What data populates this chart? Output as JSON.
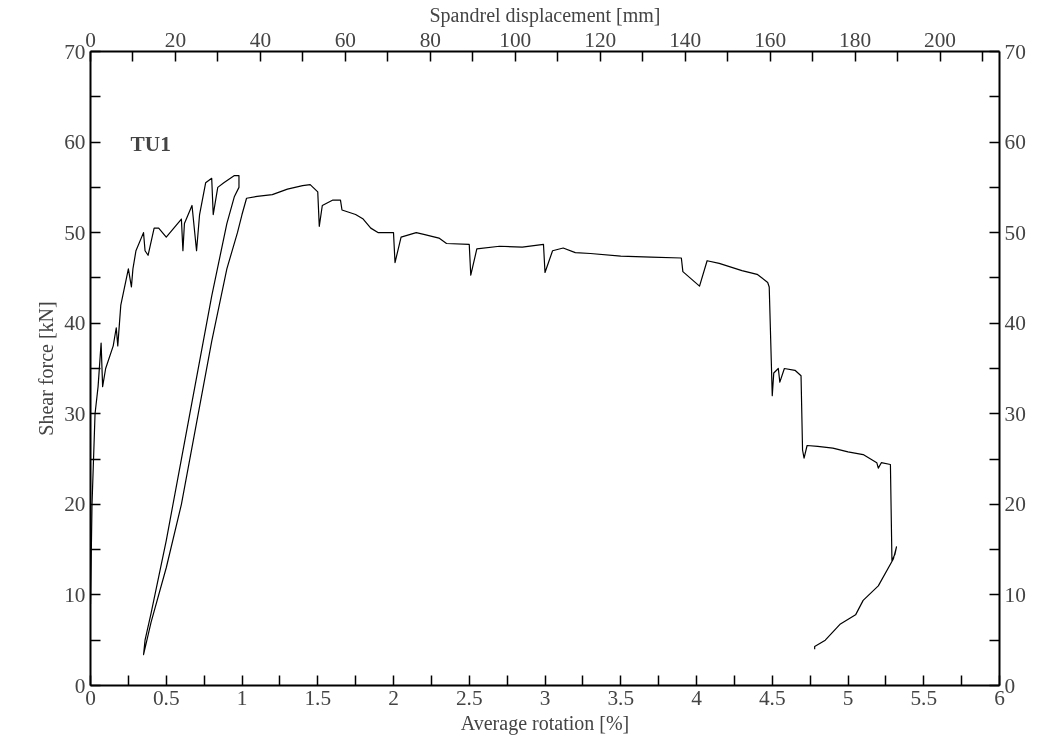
{
  "chart_data": {
    "type": "line",
    "xlabel": "Average rotation [%]",
    "ylabel": "Shear force [kN]",
    "x2label": "Spandrel displacement [mm]",
    "annotations": [
      "TU1"
    ],
    "xlim": [
      0,
      6
    ],
    "ylim": [
      0,
      70
    ],
    "x2lim": [
      0,
      214
    ],
    "y2lim": [
      0,
      70
    ],
    "xticks": [
      0,
      {
        "value": 0.25,
        "label": null
      },
      0.5,
      {
        "value": 0.75,
        "label": null
      },
      1,
      {
        "value": 1.25,
        "label": null
      },
      1.5,
      {
        "value": 1.75,
        "label": null
      },
      2,
      {
        "value": 2.25,
        "label": null
      },
      2.5,
      {
        "value": 2.75,
        "label": null
      },
      3,
      {
        "value": 3.25,
        "label": null
      },
      3.5,
      {
        "value": 3.75,
        "label": null
      },
      4,
      {
        "value": 4.25,
        "label": null
      },
      4.5,
      {
        "value": 4.75,
        "label": null
      },
      5,
      {
        "value": 5.25,
        "label": null
      },
      5.5,
      {
        "value": 5.75,
        "label": null
      },
      6
    ],
    "x2ticks": [
      0,
      {
        "value": 10,
        "label": null
      },
      20,
      {
        "value": 30,
        "label": null
      },
      40,
      {
        "value": 50,
        "label": null
      },
      60,
      {
        "value": 70,
        "label": null
      },
      80,
      {
        "value": 90,
        "label": null
      },
      100,
      {
        "value": 110,
        "label": null
      },
      120,
      {
        "value": 130,
        "label": null
      },
      140,
      {
        "value": 150,
        "label": null
      },
      160,
      {
        "value": 170,
        "label": null
      },
      180,
      {
        "value": 190,
        "label": null
      },
      200,
      {
        "value": 210,
        "label": null
      }
    ],
    "yticks": [
      0,
      {
        "value": 5,
        "label": null
      },
      10,
      {
        "value": 15,
        "label": null
      },
      20,
      {
        "value": 25,
        "label": null
      },
      30,
      {
        "value": 35,
        "label": null
      },
      40,
      {
        "value": 45,
        "label": null
      },
      50,
      {
        "value": 55,
        "label": null
      },
      60,
      {
        "value": 65,
        "label": null
      },
      70
    ],
    "y2ticks": [
      0,
      {
        "value": 5,
        "label": null
      },
      10,
      {
        "value": 15,
        "label": null
      },
      20,
      {
        "value": 25,
        "label": null
      },
      30,
      {
        "value": 35,
        "label": null
      },
      40,
      {
        "value": 45,
        "label": null
      },
      50,
      {
        "value": 55,
        "label": null
      },
      60,
      {
        "value": 65,
        "label": null
      },
      70
    ],
    "grid": false,
    "series": [
      {
        "color": "#000000",
        "x": [
          0,
          0.01,
          0.03,
          0.05,
          0.07,
          0.08,
          0.1,
          0.15,
          0.17,
          0.18,
          0.2,
          0.25,
          0.27,
          0.28,
          0.3,
          0.35,
          0.36,
          0.38,
          0.42,
          0.45,
          0.5,
          0.55,
          0.6,
          0.61,
          0.62,
          0.67,
          0.7,
          0.72,
          0.76,
          0.8,
          0.81,
          0.84,
          0.88,
          0.95,
          0.98,
          0.98,
          0.95,
          0.9,
          0.8,
          0.7,
          0.6,
          0.5,
          0.4,
          0.36,
          0.35,
          0.4,
          0.5,
          0.6,
          0.7,
          0.8,
          0.9,
          0.97,
          1.0,
          1.03,
          1.1,
          1.2,
          1.3,
          1.4,
          1.45,
          1.5,
          1.51,
          1.53,
          1.6,
          1.65,
          1.66,
          1.75,
          1.8,
          1.85,
          1.9,
          2.0,
          2.01,
          2.05,
          2.15,
          2.2,
          2.3,
          2.35,
          2.5,
          2.51,
          2.55,
          2.7,
          2.85,
          2.99,
          3.0,
          3.05,
          3.12,
          3.2,
          3.3,
          3.5,
          3.7,
          3.9,
          3.91,
          4.02,
          4.07,
          4.15,
          4.3,
          4.4,
          4.47,
          4.48,
          4.5,
          4.51,
          4.54,
          4.55,
          4.58,
          4.65,
          4.69,
          4.7,
          4.71,
          4.73,
          4.8,
          4.9,
          5.0,
          5.1,
          5.19,
          5.2,
          5.22,
          5.28,
          5.29,
          5.31,
          5.32,
          5.3,
          5.2,
          5.1,
          5.05,
          4.95,
          4.85,
          4.78,
          4.78
        ],
        "values": [
          9,
          20,
          30,
          33,
          37.8,
          33,
          35,
          37.5,
          39.5,
          37.5,
          42,
          46,
          44,
          46,
          48,
          50,
          48,
          47.5,
          50.5,
          50.5,
          49.5,
          50.5,
          51.5,
          48,
          51,
          53,
          48,
          52,
          55.5,
          56,
          52,
          55,
          55.5,
          56.3,
          56.3,
          55,
          54,
          51,
          43,
          34,
          25,
          16,
          8,
          5,
          3.4,
          7,
          13,
          20,
          29,
          38,
          46,
          50,
          52,
          53.8,
          54,
          54.2,
          54.8,
          55.2,
          55.3,
          54.5,
          50.7,
          53,
          53.6,
          53.6,
          52.5,
          52,
          51.5,
          50.5,
          50,
          50,
          46.7,
          49.5,
          50,
          49.8,
          49.4,
          48.8,
          48.7,
          45.3,
          48.2,
          48.5,
          48.4,
          48.7,
          45.6,
          48,
          48.3,
          47.8,
          47.7,
          47.4,
          47.3,
          47.2,
          45.7,
          44.1,
          46.9,
          46.6,
          45.8,
          45.4,
          44.5,
          44,
          32,
          34.5,
          35,
          33.5,
          35,
          34.8,
          34.2,
          26,
          25.1,
          26.5,
          26.4,
          26.2,
          25.8,
          25.5,
          24.6,
          24,
          24.6,
          24.4,
          13.8,
          14.5,
          15.3,
          14,
          11,
          9.4,
          7.8,
          6.8,
          5,
          4.3,
          4
        ]
      }
    ]
  }
}
